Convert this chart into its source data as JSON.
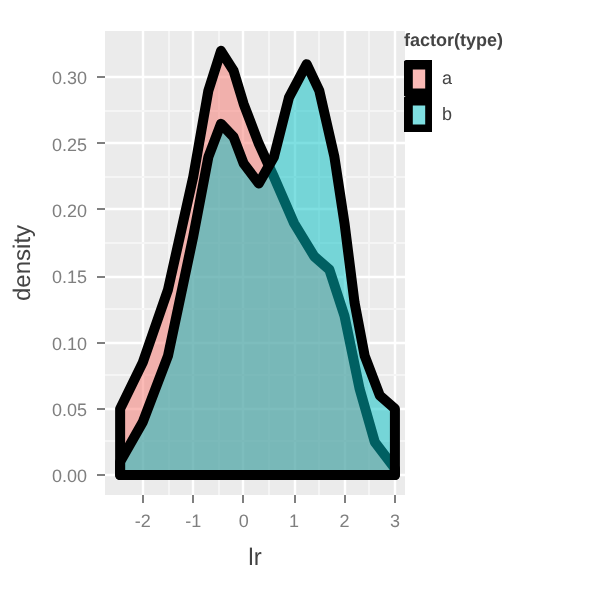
{
  "chart_data": {
    "type": "area",
    "xlabel": "lr",
    "ylabel": "density",
    "legend_title": "factor(type)",
    "legend": "right",
    "grid": true,
    "xlim": [
      -2.75,
      3.2
    ],
    "ylim": [
      -0.015,
      0.335
    ],
    "xticks": [
      -2,
      -1,
      0,
      1,
      2,
      3
    ],
    "yticks": [
      {
        "value": 0,
        "label": "0.00"
      },
      {
        "value": 0.05,
        "label": "0.05"
      },
      {
        "value": 0.1,
        "label": "0.10"
      },
      {
        "value": 0.15,
        "label": "0.15"
      },
      {
        "value": 0.2,
        "label": "0.20"
      },
      {
        "value": 0.25,
        "label": "0.25"
      },
      {
        "value": 0.3,
        "label": "0.30"
      }
    ],
    "series": [
      {
        "name": "a",
        "color": "#f8766d",
        "x": [
          -2.45,
          -2,
          -1.5,
          -1,
          -0.7,
          -0.45,
          -0.2,
          0,
          0.3,
          0.6,
          1.0,
          1.4,
          1.7,
          2.0,
          2.3,
          2.6,
          3.0
        ],
        "values": [
          0.05,
          0.085,
          0.14,
          0.225,
          0.29,
          0.32,
          0.305,
          0.28,
          0.25,
          0.225,
          0.19,
          0.165,
          0.155,
          0.12,
          0.065,
          0.025,
          0.005
        ]
      },
      {
        "name": "b",
        "color": "#00bfc4",
        "x": [
          -2.45,
          -2,
          -1.5,
          -1,
          -0.7,
          -0.45,
          -0.2,
          0,
          0.3,
          0.6,
          0.9,
          1.25,
          1.5,
          1.8,
          2.0,
          2.2,
          2.4,
          2.7,
          3.0
        ],
        "values": [
          0.01,
          0.04,
          0.09,
          0.18,
          0.24,
          0.265,
          0.255,
          0.235,
          0.22,
          0.24,
          0.285,
          0.31,
          0.29,
          0.24,
          0.19,
          0.13,
          0.09,
          0.06,
          0.05
        ]
      }
    ]
  }
}
